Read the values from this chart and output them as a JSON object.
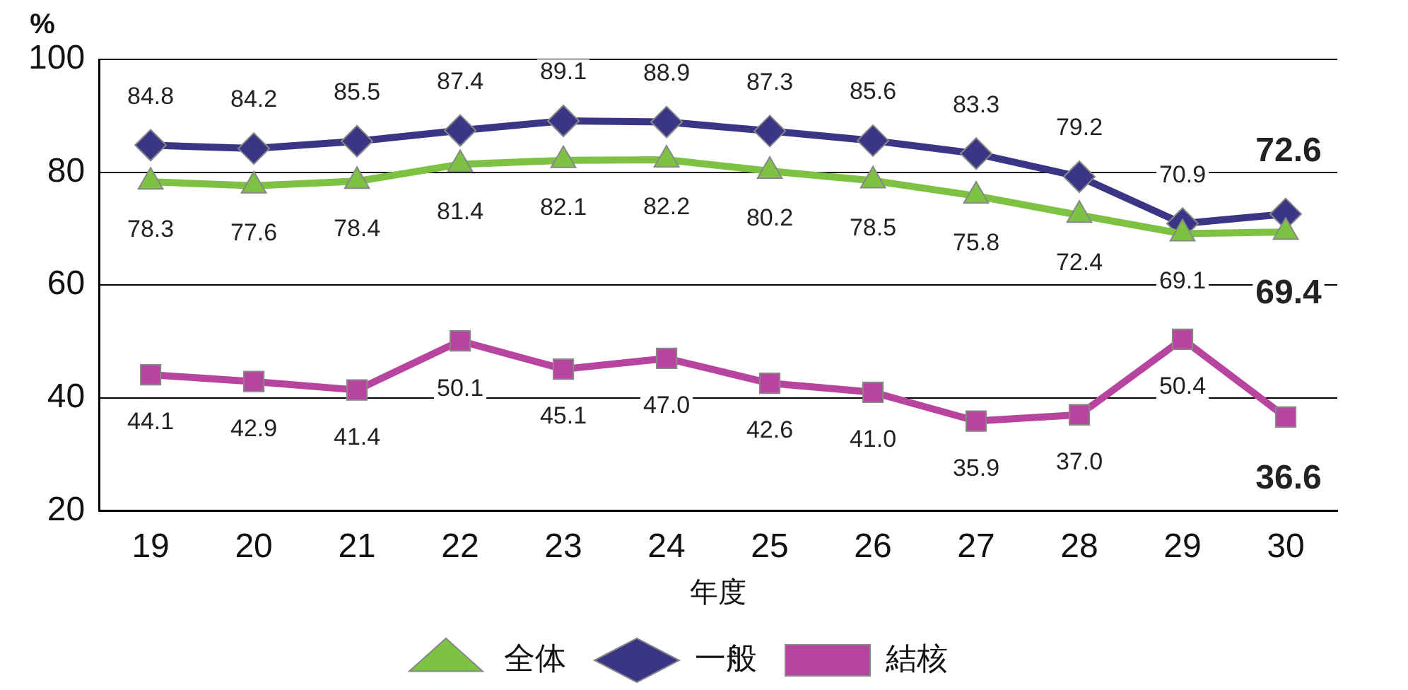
{
  "chart_data": {
    "type": "line",
    "xlabel": "年度",
    "ylabel": "%",
    "categories": [
      "19",
      "20",
      "21",
      "22",
      "23",
      "24",
      "25",
      "26",
      "27",
      "28",
      "29",
      "30"
    ],
    "ylim": [
      20,
      100
    ],
    "yticks": [
      20,
      40,
      60,
      80,
      100
    ],
    "grid": "y",
    "legend": "bottom",
    "line_style": "solid",
    "series": [
      {
        "name": "全体",
        "color": "#7dc242",
        "marker": "triangle",
        "values": [
          78.3,
          77.6,
          78.4,
          81.4,
          82.1,
          82.2,
          80.2,
          78.5,
          75.8,
          72.4,
          69.1,
          69.4
        ],
        "value_labels": [
          "78.3",
          "77.6",
          "78.4",
          "81.4",
          "82.1",
          "82.2",
          "80.2",
          "78.5",
          "75.8",
          "72.4",
          "69.1",
          "69.4"
        ]
      },
      {
        "name": "一般",
        "color": "#3b3585",
        "marker": "diamond",
        "values": [
          84.8,
          84.2,
          85.5,
          87.4,
          89.1,
          88.9,
          87.3,
          85.6,
          83.3,
          79.2,
          70.9,
          72.6
        ],
        "value_labels": [
          "84.8",
          "84.2",
          "85.5",
          "87.4",
          "89.1",
          "88.9",
          "87.3",
          "85.6",
          "83.3",
          "79.2",
          "70.9",
          "72.6"
        ]
      },
      {
        "name": "結核",
        "color": "#b7449e",
        "marker": "square",
        "values": [
          44.1,
          42.9,
          41.4,
          50.1,
          45.1,
          47.0,
          42.6,
          41.0,
          35.9,
          37.0,
          50.4,
          36.6
        ],
        "value_labels": [
          "44.1",
          "42.9",
          "41.4",
          "50.1",
          "45.1",
          "47.0",
          "42.6",
          "41.0",
          "35.9",
          "37.0",
          "50.4",
          "36.6"
        ]
      }
    ]
  }
}
